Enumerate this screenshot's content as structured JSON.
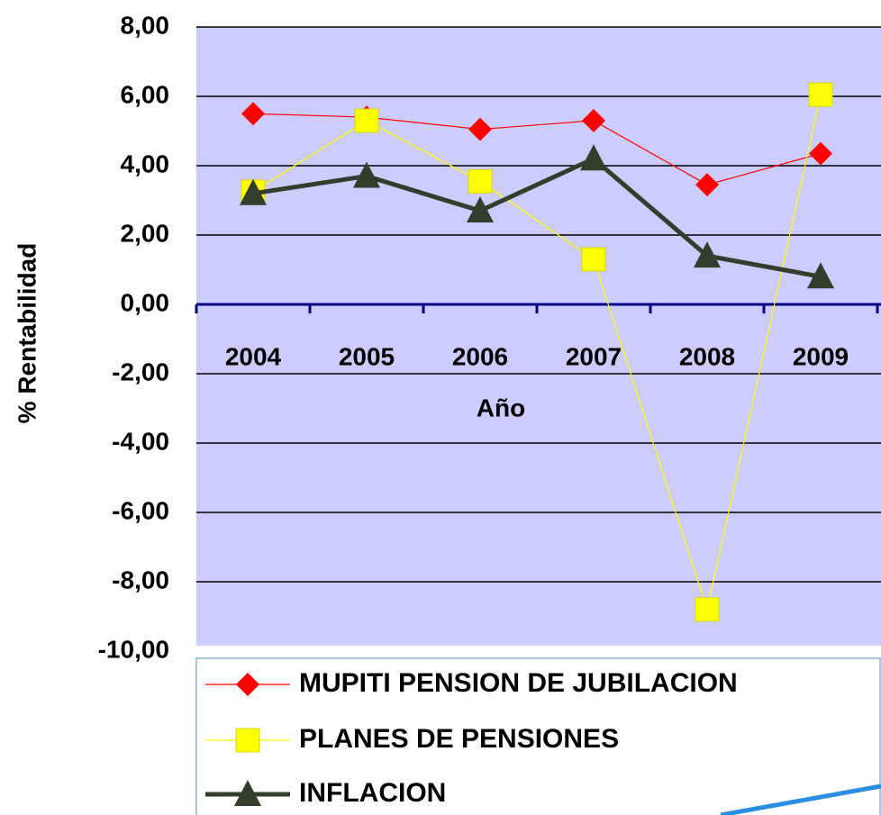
{
  "chart_data": {
    "type": "line",
    "xlabel": "Año",
    "ylabel": "% Rentabilidad",
    "categories": [
      "2004",
      "2005",
      "2006",
      "2007",
      "2008",
      "2009"
    ],
    "series": [
      {
        "name": "MUPITI PENSION DE JUBILACION",
        "color": "#ff0000",
        "marker": "diamond",
        "line_width": 1.2,
        "values": [
          5.5,
          5.4,
          5.05,
          5.3,
          3.45,
          4.35
        ]
      },
      {
        "name": "PLANES DE PENSIONES",
        "color": "#ffff00",
        "marker": "square",
        "line_width": 1.2,
        "values": [
          3.25,
          5.3,
          3.55,
          1.3,
          -8.8,
          6.05
        ]
      },
      {
        "name": "INFLACION",
        "color": "#333d2c",
        "marker": "triangle",
        "line_width": 5,
        "values": [
          3.2,
          3.7,
          2.7,
          4.2,
          1.4,
          0.8
        ]
      }
    ],
    "ylim": [
      -10,
      8
    ],
    "yticks": [
      {
        "value": -10,
        "label": "-10,00"
      },
      {
        "value": -8,
        "label": "-8,00"
      },
      {
        "value": -6,
        "label": "-6,00"
      },
      {
        "value": -4,
        "label": "-4,00"
      },
      {
        "value": -2,
        "label": "-2,00"
      },
      {
        "value": 0,
        "label": "0,00"
      },
      {
        "value": 2,
        "label": "2,00"
      },
      {
        "value": 4,
        "label": "4,00"
      },
      {
        "value": 6,
        "label": "6,00"
      },
      {
        "value": 8,
        "label": "8,00"
      }
    ],
    "grid": true,
    "legend": "bottom"
  }
}
